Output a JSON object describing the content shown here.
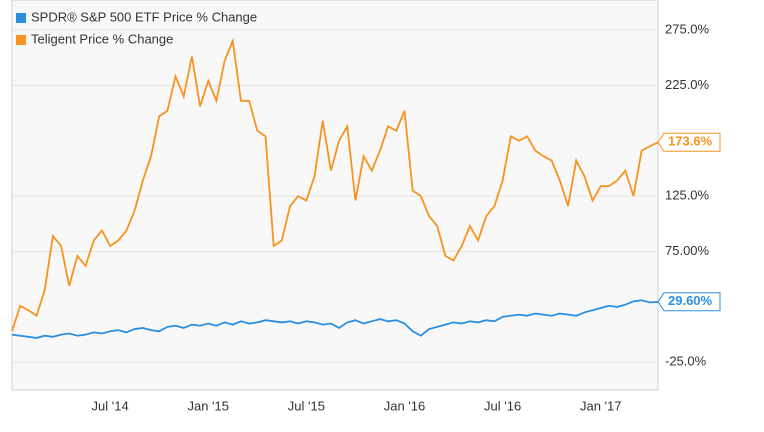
{
  "chart_data": {
    "type": "line",
    "categories": [
      null,
      null,
      null,
      null,
      null,
      null,
      null,
      null,
      null,
      null,
      null,
      null,
      "Jul '14",
      null,
      null,
      null,
      null,
      null,
      null,
      null,
      null,
      null,
      null,
      null,
      "Jan '15",
      null,
      null,
      null,
      null,
      null,
      null,
      null,
      null,
      null,
      null,
      null,
      "Jul '15",
      null,
      null,
      null,
      null,
      null,
      null,
      null,
      null,
      null,
      null,
      null,
      "Jan '16",
      null,
      null,
      null,
      null,
      null,
      null,
      null,
      null,
      null,
      null,
      null,
      "Jul '16",
      null,
      null,
      null,
      null,
      null,
      null,
      null,
      null,
      null,
      null,
      null,
      "Jan '17",
      null,
      null,
      null,
      null,
      null,
      null,
      null
    ],
    "series": [
      {
        "name": "SPDR® S&P 500 ETF Price % Change",
        "color": "#2b8fe0",
        "values": [
          0,
          -1,
          -2,
          -3,
          -1,
          -2,
          0,
          1,
          -1,
          0,
          2,
          1,
          3,
          4,
          2,
          5,
          6,
          4,
          3,
          7,
          8,
          6,
          9,
          8,
          10,
          8,
          11,
          9,
          12,
          10,
          11,
          13,
          12,
          11,
          12,
          10,
          12,
          11,
          9,
          10,
          6,
          11,
          13,
          10,
          12,
          14,
          12,
          13,
          10,
          3,
          -1,
          5,
          7,
          9,
          11,
          10,
          12,
          11,
          13,
          12,
          16,
          17,
          18,
          17,
          19,
          18,
          17,
          19,
          18,
          17,
          20,
          22,
          24,
          26,
          25,
          27,
          30,
          31,
          29,
          29.6
        ],
        "value_labels": [
          null,
          null,
          null,
          null,
          null,
          null,
          null,
          null,
          null,
          null,
          null,
          null,
          null,
          null,
          null,
          null,
          null,
          null,
          null,
          null,
          null,
          null,
          null,
          null,
          null,
          null,
          null,
          null,
          null,
          null,
          null,
          null,
          null,
          null,
          null,
          null,
          null,
          null,
          null,
          null,
          null,
          null,
          null,
          null,
          null,
          null,
          null,
          null,
          null,
          null,
          null,
          null,
          null,
          null,
          null,
          null,
          null,
          null,
          null,
          null,
          null,
          null,
          null,
          null,
          null,
          null,
          null,
          null,
          null,
          null,
          null,
          null,
          null,
          null,
          null,
          null,
          null,
          null,
          null,
          "29.60%"
        ]
      },
      {
        "name": "Teligent Price % Change",
        "color": "#f7931e",
        "values": [
          3,
          26,
          22,
          17,
          40,
          89,
          80,
          44,
          71,
          62,
          85,
          94,
          80,
          85,
          94,
          112,
          139,
          161,
          197,
          202,
          233,
          215,
          251,
          206,
          229,
          211,
          247,
          265,
          211,
          211,
          184,
          179,
          80,
          85,
          116,
          125,
          121,
          143,
          193,
          148,
          175,
          188,
          121,
          161,
          148,
          166,
          188,
          184,
          202,
          130,
          125,
          107,
          98,
          71,
          67,
          80,
          98,
          85,
          107,
          116,
          139,
          179,
          175,
          179,
          166,
          161,
          157,
          139,
          116,
          157,
          143,
          121,
          134,
          134,
          139,
          148,
          125,
          166,
          170,
          173.6
        ],
        "value_labels": [
          null,
          null,
          null,
          null,
          null,
          null,
          null,
          null,
          null,
          null,
          null,
          null,
          null,
          null,
          null,
          null,
          null,
          null,
          null,
          null,
          null,
          null,
          null,
          null,
          null,
          null,
          null,
          null,
          null,
          null,
          null,
          null,
          null,
          null,
          null,
          null,
          null,
          null,
          null,
          null,
          null,
          null,
          null,
          null,
          null,
          null,
          null,
          null,
          null,
          null,
          null,
          null,
          null,
          null,
          null,
          null,
          null,
          null,
          null,
          null,
          null,
          null,
          null,
          null,
          null,
          null,
          null,
          null,
          null,
          null,
          null,
          null,
          null,
          null,
          null,
          null,
          null,
          null,
          null,
          "173.6%"
        ]
      }
    ],
    "ylim": [
      -50,
      302
    ],
    "yticks": [
      {
        "value": -25,
        "label": "-25.0%"
      },
      {
        "value": 75,
        "label": "75.00%"
      },
      {
        "value": 125,
        "label": "125.0%"
      },
      {
        "value": 225,
        "label": "225.0%"
      },
      {
        "value": 275,
        "label": "275.0%"
      }
    ],
    "grid": true,
    "legend": "top-left"
  }
}
